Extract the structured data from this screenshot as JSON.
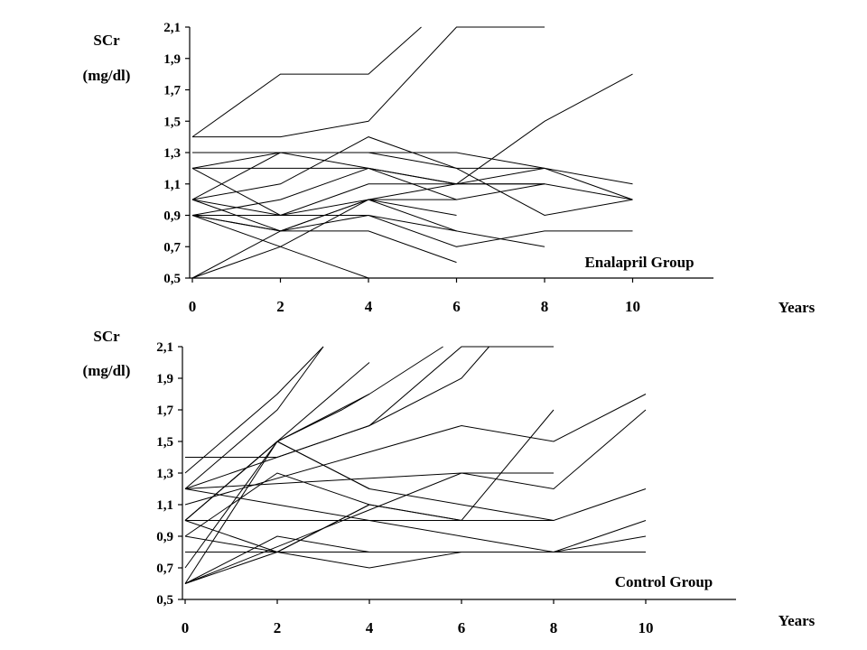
{
  "chart_data": [
    {
      "type": "line",
      "ylabel_line1": "SCr",
      "ylabel_line2": "(mg/dl)",
      "xlabel": "Years",
      "group_label": "Enalapril Group",
      "x_ticks": [
        "0",
        "2",
        "4",
        "6",
        "8",
        "10"
      ],
      "y_ticks": [
        "0,5",
        "0,7",
        "0,9",
        "1,1",
        "1,3",
        "1,5",
        "1,7",
        "1,9",
        "2,1"
      ],
      "xlim": [
        0,
        12
      ],
      "ylim": [
        0.5,
        2.1
      ],
      "series": [
        {
          "x": [
            0,
            2,
            4,
            5.2
          ],
          "y": [
            1.4,
            1.8,
            1.8,
            2.1
          ]
        },
        {
          "x": [
            0,
            2,
            4,
            6,
            8
          ],
          "y": [
            1.4,
            1.4,
            1.5,
            2.1,
            2.1
          ]
        },
        {
          "x": [
            0,
            6,
            8,
            10
          ],
          "y": [
            1.3,
            1.3,
            1.2,
            1.1
          ]
        },
        {
          "x": [
            0,
            2,
            4,
            6,
            8,
            10
          ],
          "y": [
            1.2,
            1.2,
            1.2,
            1.1,
            1.5,
            1.8
          ]
        },
        {
          "x": [
            0,
            2,
            4,
            6,
            8,
            10
          ],
          "y": [
            1.2,
            1.3,
            1.2,
            1.1,
            1.1,
            1.0
          ]
        },
        {
          "x": [
            0,
            2,
            4,
            6,
            8,
            10
          ],
          "y": [
            1.0,
            1.3,
            1.3,
            1.2,
            1.2,
            1.0
          ]
        },
        {
          "x": [
            0,
            2,
            4,
            6,
            8,
            10
          ],
          "y": [
            1.0,
            1.1,
            1.4,
            1.2,
            0.9,
            1.0
          ]
        },
        {
          "x": [
            0,
            2,
            4,
            6,
            8
          ],
          "y": [
            0.9,
            1.0,
            1.2,
            1.0,
            1.1
          ]
        },
        {
          "x": [
            0,
            2,
            4,
            6
          ],
          "y": [
            1.2,
            0.9,
            1.0,
            0.8
          ]
        },
        {
          "x": [
            0,
            2,
            4,
            6
          ],
          "y": [
            1.0,
            0.8,
            1.0,
            0.9
          ]
        },
        {
          "x": [
            0,
            2,
            4,
            6,
            8
          ],
          "y": [
            0.9,
            0.9,
            1.1,
            1.1,
            1.2
          ]
        },
        {
          "x": [
            0,
            2,
            4,
            6,
            8,
            10
          ],
          "y": [
            0.9,
            0.8,
            0.9,
            0.7,
            0.8,
            0.8
          ]
        },
        {
          "x": [
            0,
            2,
            4,
            6
          ],
          "y": [
            0.9,
            0.8,
            0.8,
            0.6
          ]
        },
        {
          "x": [
            0,
            2,
            4,
            8
          ],
          "y": [
            1.0,
            0.9,
            0.9,
            0.7
          ]
        },
        {
          "x": [
            0,
            2,
            4
          ],
          "y": [
            0.9,
            0.7,
            0.5
          ]
        },
        {
          "x": [
            0,
            2,
            4,
            6,
            8
          ],
          "y": [
            0.5,
            0.7,
            1.0,
            1.1,
            1.1
          ]
        },
        {
          "x": [
            0,
            2,
            4,
            6
          ],
          "y": [
            0.5,
            0.8,
            1.0,
            1.0
          ]
        }
      ]
    },
    {
      "type": "line",
      "ylabel_line1": "SCr",
      "ylabel_line2": "(mg/dl)",
      "xlabel": "Years",
      "group_label": "Control Group",
      "x_ticks": [
        "0",
        "2",
        "4",
        "6",
        "8",
        "10"
      ],
      "y_ticks": [
        "0,5",
        "0,7",
        "0,9",
        "1,1",
        "1,3",
        "1,5",
        "1,7",
        "1,9",
        "2,1"
      ],
      "xlim": [
        0,
        12
      ],
      "ylim": [
        0.5,
        2.1
      ],
      "series": [
        {
          "x": [
            0,
            2,
            3
          ],
          "y": [
            1.2,
            1.7,
            2.1
          ]
        },
        {
          "x": [
            0,
            2,
            3
          ],
          "y": [
            1.3,
            1.8,
            2.1
          ]
        },
        {
          "x": [
            0,
            2,
            4
          ],
          "y": [
            1.0,
            1.5,
            2.0
          ]
        },
        {
          "x": [
            0,
            2,
            4,
            5.6
          ],
          "y": [
            1.0,
            1.5,
            1.8,
            2.1
          ]
        },
        {
          "x": [
            0,
            4,
            6,
            6.6
          ],
          "y": [
            1.2,
            1.6,
            1.9,
            2.1
          ]
        },
        {
          "x": [
            0,
            2,
            4,
            6,
            8
          ],
          "y": [
            1.4,
            1.4,
            1.6,
            2.1,
            2.1
          ]
        },
        {
          "x": [
            0,
            6,
            8,
            10
          ],
          "y": [
            1.1,
            1.6,
            1.5,
            1.8
          ]
        },
        {
          "x": [
            0,
            6,
            8,
            10
          ],
          "y": [
            0.6,
            1.3,
            1.2,
            1.7
          ]
        },
        {
          "x": [
            0,
            2,
            4,
            6,
            8
          ],
          "y": [
            1.0,
            1.5,
            1.2,
            1.1,
            1.0
          ]
        },
        {
          "x": [
            0,
            2,
            4,
            6,
            8
          ],
          "y": [
            0.9,
            1.3,
            1.1,
            1.0,
            1.7
          ]
        },
        {
          "x": [
            0,
            6,
            8
          ],
          "y": [
            1.2,
            1.3,
            1.3
          ]
        },
        {
          "x": [
            0,
            2,
            4,
            6,
            8,
            10
          ],
          "y": [
            1.2,
            1.1,
            1.0,
            0.9,
            0.8,
            0.9
          ]
        },
        {
          "x": [
            0,
            2,
            4,
            6,
            8,
            10
          ],
          "y": [
            1.0,
            1.0,
            1.0,
            1.0,
            1.0,
            1.2
          ]
        },
        {
          "x": [
            0,
            2,
            4,
            6
          ],
          "y": [
            0.9,
            0.8,
            1.1,
            1.0
          ]
        },
        {
          "x": [
            0,
            2,
            4,
            6,
            8,
            10
          ],
          "y": [
            1.0,
            0.8,
            0.7,
            0.8,
            0.8,
            1.0
          ]
        },
        {
          "x": [
            0,
            2,
            10
          ],
          "y": [
            0.8,
            0.8,
            0.8
          ]
        },
        {
          "x": [
            0,
            2,
            4
          ],
          "y": [
            0.6,
            0.8,
            1.1
          ]
        },
        {
          "x": [
            0,
            2,
            4
          ],
          "y": [
            0.6,
            0.9,
            0.8
          ]
        },
        {
          "x": [
            0,
            2,
            4
          ],
          "y": [
            0.7,
            1.5,
            1.2
          ]
        },
        {
          "x": [
            0,
            2,
            3.4,
            4
          ],
          "y": [
            0.6,
            1.5,
            1.7,
            1.8
          ]
        }
      ]
    }
  ]
}
